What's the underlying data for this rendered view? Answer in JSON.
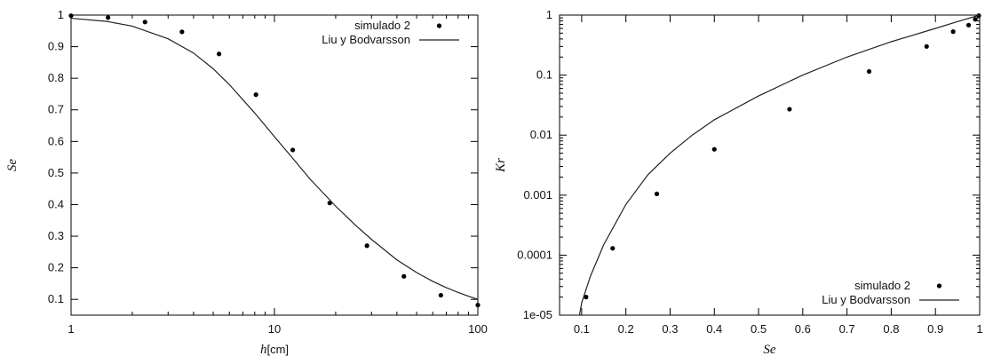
{
  "chart_data": [
    {
      "type": "scatter",
      "xscale": "log",
      "xlim": [
        1,
        100
      ],
      "ylim": [
        0.05,
        1
      ],
      "xlabel_prefix": "h",
      "xlabel_suffix": "[cm]",
      "ylabel": "Se",
      "xticks": [
        "1",
        "10",
        "100"
      ],
      "yticks": [
        "0.1",
        "0.2",
        "0.3",
        "0.4",
        "0.5",
        "0.6",
        "0.7",
        "0.8",
        "0.9",
        "1"
      ],
      "legend_position": "top-right",
      "series": [
        {
          "name": "simulado 2",
          "kind": "points",
          "x": [
            1,
            1.52,
            2.31,
            3.51,
            5.34,
            8.11,
            12.3,
            18.7,
            28.5,
            43.3,
            65.8,
            100
          ],
          "y": [
            0.998,
            0.992,
            0.978,
            0.947,
            0.877,
            0.748,
            0.573,
            0.405,
            0.27,
            0.173,
            0.113,
            0.082
          ]
        },
        {
          "name": "Liu y Bodvarsson",
          "kind": "line",
          "x": [
            1,
            1.5,
            2,
            3,
            4,
            5,
            6,
            8,
            10,
            12,
            15,
            20,
            25,
            30,
            40,
            50,
            60,
            70,
            80,
            90,
            100
          ],
          "y": [
            0.99,
            0.98,
            0.965,
            0.925,
            0.88,
            0.83,
            0.78,
            0.69,
            0.615,
            0.555,
            0.48,
            0.395,
            0.335,
            0.29,
            0.225,
            0.185,
            0.157,
            0.137,
            0.122,
            0.11,
            0.1
          ]
        }
      ]
    },
    {
      "type": "scatter",
      "yscale": "log",
      "xlim": [
        0.05,
        1
      ],
      "ylim": [
        1e-05,
        1
      ],
      "xlabel": "Se",
      "ylabel": "Kr",
      "xticks": [
        "0.1",
        "0.2",
        "0.3",
        "0.4",
        "0.5",
        "0.6",
        "0.7",
        "0.8",
        "0.9",
        "1"
      ],
      "yticks": [
        "1e-05",
        "0.0001",
        "0.001",
        "0.01",
        "0.1",
        "1"
      ],
      "legend_position": "bottom-right",
      "series": [
        {
          "name": "simulado 2",
          "kind": "points",
          "x": [
            0.11,
            0.17,
            0.27,
            0.4,
            0.57,
            0.75,
            0.88,
            0.94,
            0.975,
            0.99,
            0.998
          ],
          "y": [
            2e-05,
            0.00013,
            0.00105,
            0.0058,
            0.027,
            0.115,
            0.3,
            0.53,
            0.68,
            0.85,
            0.98
          ]
        },
        {
          "name": "Liu y Bodvarsson",
          "kind": "line",
          "x": [
            0.095,
            0.1,
            0.12,
            0.15,
            0.2,
            0.25,
            0.3,
            0.35,
            0.4,
            0.5,
            0.6,
            0.7,
            0.8,
            0.9,
            0.95,
            1
          ],
          "y": [
            1e-05,
            1.6e-05,
            4.5e-05,
            0.00015,
            0.0007,
            0.0022,
            0.005,
            0.01,
            0.018,
            0.045,
            0.1,
            0.2,
            0.36,
            0.6,
            0.78,
            1
          ]
        }
      ]
    }
  ]
}
